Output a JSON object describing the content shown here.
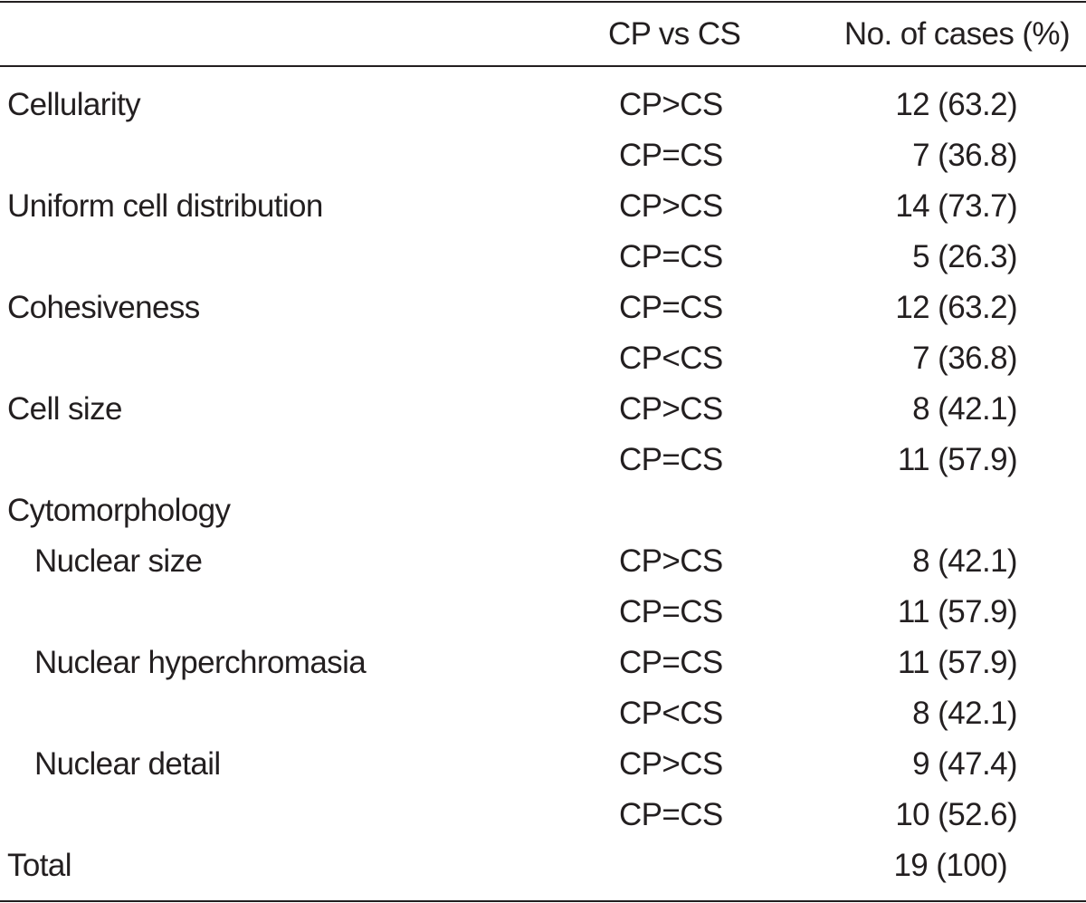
{
  "header": {
    "col_label": "",
    "col_comparison": "CP vs CS",
    "col_cases": "No. of cases (%)"
  },
  "rows": [
    {
      "label": "Cellularity",
      "comparison": "CP>CS",
      "cases": "12 (63.2)"
    },
    {
      "label": "",
      "comparison": "CP=CS",
      "cases": "7 (36.8)"
    },
    {
      "label": "Uniform cell distribution",
      "comparison": "CP>CS",
      "cases": "14 (73.7)"
    },
    {
      "label": "",
      "comparison": "CP=CS",
      "cases": "5 (26.3)"
    },
    {
      "label": "Cohesiveness",
      "comparison": "CP=CS",
      "cases": "12 (63.2)"
    },
    {
      "label": "",
      "comparison": "CP<CS",
      "cases": "7 (36.8)"
    },
    {
      "label": "Cell size",
      "comparison": "CP>CS",
      "cases": "8 (42.1)"
    },
    {
      "label": "",
      "comparison": "CP=CS",
      "cases": "11 (57.9)"
    },
    {
      "label": "Cytomorphology",
      "comparison": "",
      "cases": ""
    },
    {
      "label": "Nuclear size",
      "comparison": "CP>CS",
      "cases": "8 (42.1)"
    },
    {
      "label": "",
      "comparison": "CP=CS",
      "cases": "11 (57.9)"
    },
    {
      "label": "Nuclear hyperchromasia",
      "comparison": "CP=CS",
      "cases": "11 (57.9)"
    },
    {
      "label": "",
      "comparison": "CP<CS",
      "cases": "8 (42.1)"
    },
    {
      "label": "Nuclear detail",
      "comparison": "CP>CS",
      "cases": "9 (47.4)"
    },
    {
      "label": "",
      "comparison": "CP=CS",
      "cases": "10 (52.6)"
    },
    {
      "label": "Total",
      "comparison": "",
      "cases": "19 (100)"
    }
  ]
}
